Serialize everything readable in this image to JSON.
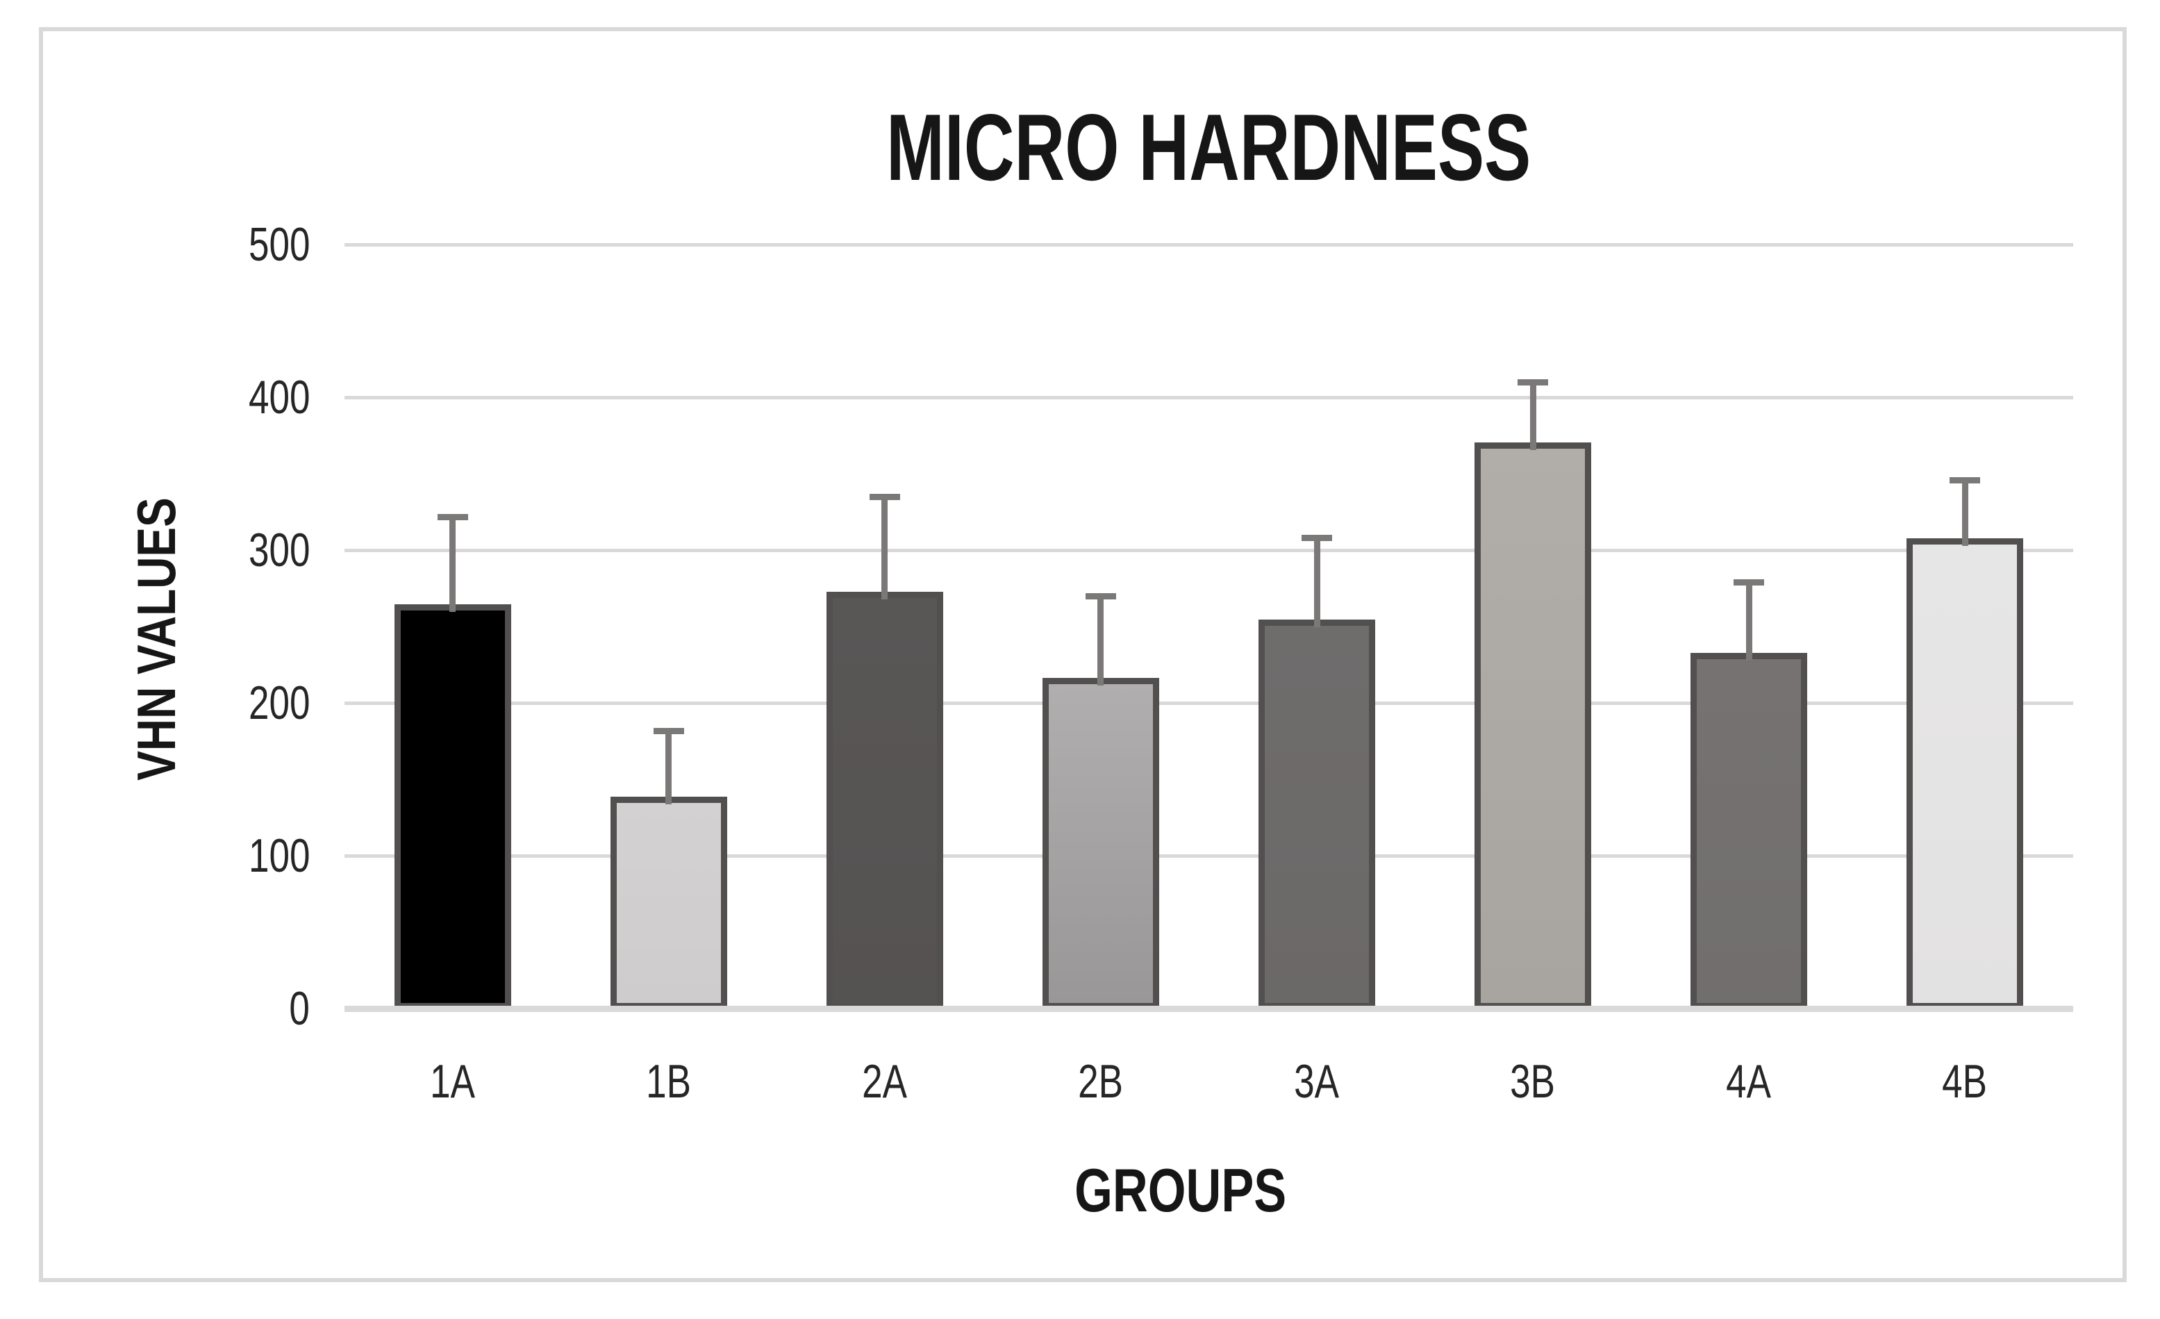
{
  "chart_data": {
    "type": "bar",
    "title": "MICRO HARDNESS",
    "xlabel": "GROUPS",
    "ylabel": "VHN VALUES",
    "categories": [
      "1A",
      "1B",
      "2A",
      "2B",
      "3A",
      "3B",
      "4A",
      "4B"
    ],
    "values": [
      265,
      139,
      273,
      217,
      255,
      371,
      233,
      308
    ],
    "errors_upper": [
      57,
      43,
      62,
      53,
      53,
      39,
      46,
      38
    ],
    "ylim": [
      0,
      500
    ],
    "yticks": [
      500,
      400,
      300,
      200,
      100,
      0
    ],
    "grid": true,
    "legend": "none",
    "bars": [
      {
        "label": "1A",
        "value": 265,
        "error": 57,
        "fill": "#000000",
        "fill_bottom": "#000000"
      },
      {
        "label": "1B",
        "value": 139,
        "error": 43,
        "fill": "#d3d1d1",
        "fill_bottom": "#cecccc"
      },
      {
        "label": "2A",
        "value": 273,
        "error": 62,
        "fill": "#595656",
        "fill_bottom": "#555252"
      },
      {
        "label": "2B",
        "value": 217,
        "error": 53,
        "fill": "#b0aeae",
        "fill_bottom": "#999797"
      },
      {
        "label": "3A",
        "value": 255,
        "error": 53,
        "fill": "#6f6c6c",
        "fill_bottom": "#6b6868"
      },
      {
        "label": "3B",
        "value": 371,
        "error": 39,
        "fill": "#b1ada9",
        "fill_bottom": "#a8a4a0"
      },
      {
        "label": "4A",
        "value": 233,
        "error": 46,
        "fill": "#767272",
        "fill_bottom": "#716e6e"
      },
      {
        "label": "4B",
        "value": 308,
        "error": 38,
        "fill": "#e7e6e6",
        "fill_bottom": "#e3e2e2"
      }
    ],
    "colors": {
      "bar_border": "#524f4f",
      "error_bar": "#7b7878",
      "gridline": "#d9d9d9",
      "axis_line": "#d9d9d9",
      "frame_border": "#d9d9d9",
      "text": "#262626",
      "title_text": "#161616",
      "background": "#ffffff"
    }
  }
}
